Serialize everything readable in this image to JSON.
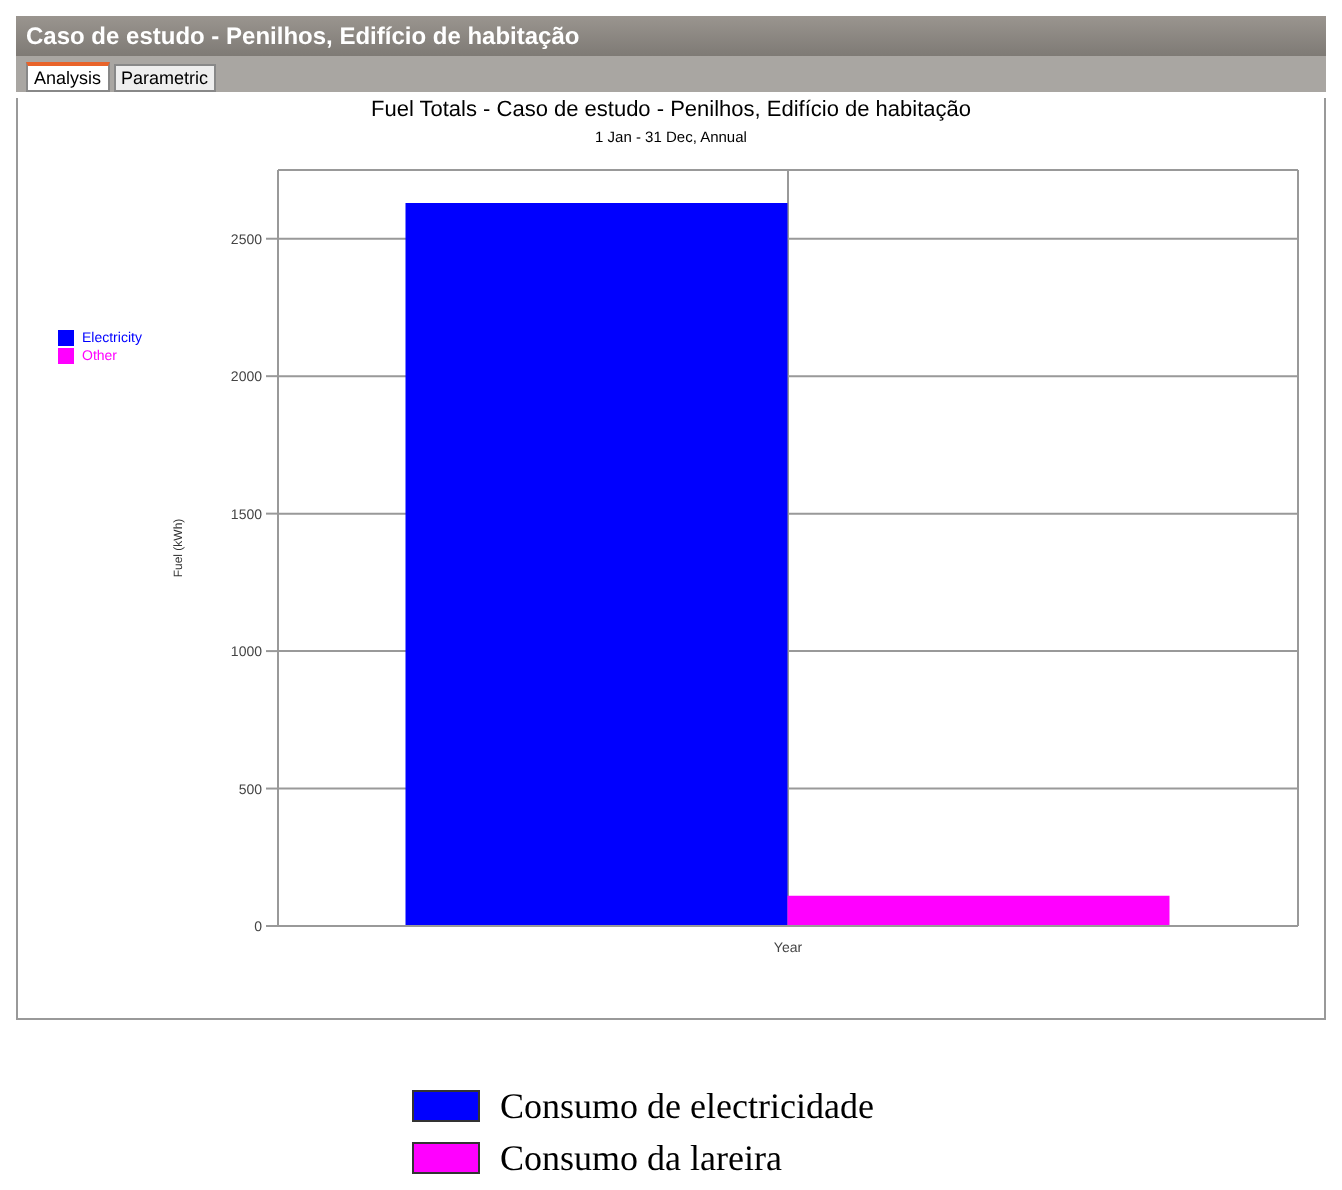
{
  "chart_data": {
    "type": "bar",
    "title": "Fuel Totals - Caso de estudo - Penilhos, Edifício de habitação",
    "subtitle": "1 Jan - 31 Dec, Annual",
    "ylabel": "Fuel (kWh)",
    "categories": [
      "Year"
    ],
    "series": [
      {
        "name": "Electricity",
        "color": "#0000ff",
        "values": [
          2630
        ]
      },
      {
        "name": "Other",
        "color": "#ff00ff",
        "values": [
          110
        ]
      }
    ],
    "ylim": [
      0,
      2750
    ],
    "yticks": [
      0,
      500,
      1000,
      1500,
      2000,
      2500
    ],
    "grid": true,
    "legend": "top left",
    "annotations": [
      "Caso de estudo - Penilhos, Edifício de habitação",
      "Analysis",
      "Parametric",
      "Consumo de electricidade",
      "Consumo da lareira"
    ]
  }
}
